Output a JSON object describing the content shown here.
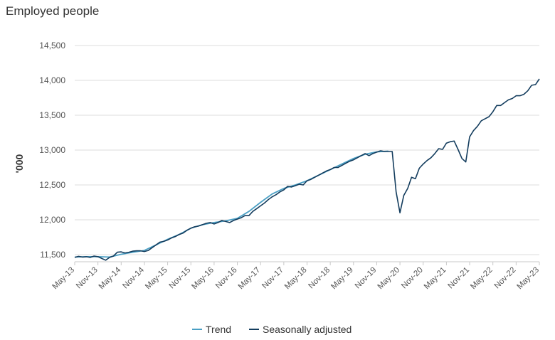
{
  "chart_data": {
    "type": "line",
    "title": "Employed people",
    "xlabel": "",
    "ylabel": "'000",
    "ylim": [
      11400,
      14500
    ],
    "yticks": [
      "11,500",
      "12,000",
      "12,500",
      "13,000",
      "13,500",
      "14,000",
      "14,500"
    ],
    "ytick_values": [
      11500,
      12000,
      12500,
      13000,
      13500,
      14000,
      14500
    ],
    "xticks": [
      "May-13",
      "Nov-13",
      "May-14",
      "Nov-14",
      "May-15",
      "Nov-15",
      "May-16",
      "Nov-16",
      "May-17",
      "Nov-17",
      "May-18",
      "Nov-18",
      "May-19",
      "Nov-19",
      "May-20",
      "Nov-20",
      "May-21",
      "Nov-21",
      "May-22",
      "Nov-22",
      "May-23"
    ],
    "grid": "horizontal",
    "legend_position": "bottom",
    "colors": {
      "trend": "#4a9fc4",
      "seasonally_adjusted": "#143d5e"
    },
    "series": [
      {
        "name": "Trend",
        "key": "trend",
        "points": [
          [
            "May-13",
            11465
          ],
          [
            "Aug-13",
            11470
          ],
          [
            "Nov-13",
            11470
          ],
          [
            "Feb-14",
            11465
          ],
          [
            "May-14",
            11505
          ],
          [
            "Aug-14",
            11535
          ],
          [
            "Nov-14",
            11560
          ],
          [
            "Feb-15",
            11640
          ],
          [
            "May-15",
            11720
          ],
          [
            "Aug-15",
            11790
          ],
          [
            "Nov-15",
            11880
          ],
          [
            "Feb-16",
            11930
          ],
          [
            "May-16",
            11960
          ],
          [
            "Aug-16",
            11985
          ],
          [
            "Nov-16",
            12020
          ],
          [
            "Feb-17",
            12120
          ],
          [
            "May-17",
            12250
          ],
          [
            "Aug-17",
            12370
          ],
          [
            "Nov-17",
            12450
          ],
          [
            "Feb-18",
            12500
          ],
          [
            "May-18",
            12560
          ],
          [
            "Aug-18",
            12640
          ],
          [
            "Nov-18",
            12720
          ],
          [
            "Feb-19",
            12800
          ],
          [
            "May-19",
            12880
          ],
          [
            "Aug-19",
            12940
          ],
          [
            "Nov-19",
            12975
          ],
          [
            "Feb-20",
            12985
          ]
        ]
      },
      {
        "name": "Seasonally adjusted",
        "key": "seasonally_adjusted",
        "points": [
          [
            "May-13",
            11460
          ],
          [
            "Jun-13",
            11475
          ],
          [
            "Jul-13",
            11465
          ],
          [
            "Aug-13",
            11470
          ],
          [
            "Sep-13",
            11460
          ],
          [
            "Oct-13",
            11480
          ],
          [
            "Nov-13",
            11470
          ],
          [
            "Dec-13",
            11445
          ],
          [
            "Jan-14",
            11420
          ],
          [
            "Feb-14",
            11460
          ],
          [
            "Mar-14",
            11480
          ],
          [
            "Apr-14",
            11535
          ],
          [
            "May-14",
            11540
          ],
          [
            "Jun-14",
            11525
          ],
          [
            "Jul-14",
            11535
          ],
          [
            "Aug-14",
            11550
          ],
          [
            "Sep-14",
            11555
          ],
          [
            "Oct-14",
            11555
          ],
          [
            "Nov-14",
            11545
          ],
          [
            "Dec-14",
            11560
          ],
          [
            "Jan-15",
            11600
          ],
          [
            "Feb-15",
            11640
          ],
          [
            "Mar-15",
            11680
          ],
          [
            "Apr-15",
            11690
          ],
          [
            "May-15",
            11710
          ],
          [
            "Jun-15",
            11740
          ],
          [
            "Jul-15",
            11760
          ],
          [
            "Aug-15",
            11790
          ],
          [
            "Sep-15",
            11810
          ],
          [
            "Oct-15",
            11850
          ],
          [
            "Nov-15",
            11880
          ],
          [
            "Dec-15",
            11900
          ],
          [
            "Jan-16",
            11910
          ],
          [
            "Feb-16",
            11930
          ],
          [
            "Mar-16",
            11950
          ],
          [
            "Apr-16",
            11960
          ],
          [
            "May-16",
            11940
          ],
          [
            "Jun-16",
            11960
          ],
          [
            "Jul-16",
            11990
          ],
          [
            "Aug-16",
            11975
          ],
          [
            "Sep-16",
            11960
          ],
          [
            "Oct-16",
            11990
          ],
          [
            "Nov-16",
            12010
          ],
          [
            "Dec-16",
            12030
          ],
          [
            "Jan-17",
            12060
          ],
          [
            "Feb-17",
            12060
          ],
          [
            "Mar-17",
            12120
          ],
          [
            "Apr-17",
            12160
          ],
          [
            "May-17",
            12200
          ],
          [
            "Jun-17",
            12240
          ],
          [
            "Jul-17",
            12290
          ],
          [
            "Aug-17",
            12330
          ],
          [
            "Sep-17",
            12360
          ],
          [
            "Oct-17",
            12400
          ],
          [
            "Nov-17",
            12430
          ],
          [
            "Dec-17",
            12480
          ],
          [
            "Jan-18",
            12470
          ],
          [
            "Feb-18",
            12490
          ],
          [
            "Mar-18",
            12510
          ],
          [
            "Apr-18",
            12500
          ],
          [
            "May-18",
            12560
          ],
          [
            "Jun-18",
            12580
          ],
          [
            "Jul-18",
            12610
          ],
          [
            "Aug-18",
            12640
          ],
          [
            "Sep-18",
            12670
          ],
          [
            "Oct-18",
            12700
          ],
          [
            "Nov-18",
            12720
          ],
          [
            "Dec-18",
            12750
          ],
          [
            "Jan-19",
            12750
          ],
          [
            "Feb-19",
            12780
          ],
          [
            "Mar-19",
            12810
          ],
          [
            "Apr-19",
            12840
          ],
          [
            "May-19",
            12860
          ],
          [
            "Jun-19",
            12890
          ],
          [
            "Jul-19",
            12920
          ],
          [
            "Aug-19",
            12950
          ],
          [
            "Sep-19",
            12920
          ],
          [
            "Oct-19",
            12950
          ],
          [
            "Nov-19",
            12970
          ],
          [
            "Dec-19",
            12990
          ],
          [
            "Jan-20",
            12980
          ],
          [
            "Feb-20",
            12980
          ],
          [
            "Mar-20",
            12980
          ],
          [
            "Apr-20",
            12400
          ],
          [
            "May-20",
            12100
          ],
          [
            "Jun-20",
            12350
          ],
          [
            "Jul-20",
            12450
          ],
          [
            "Aug-20",
            12610
          ],
          [
            "Sep-20",
            12590
          ],
          [
            "Oct-20",
            12740
          ],
          [
            "Nov-20",
            12800
          ],
          [
            "Dec-20",
            12850
          ],
          [
            "Jan-21",
            12890
          ],
          [
            "Feb-21",
            12950
          ],
          [
            "Mar-21",
            13020
          ],
          [
            "Apr-21",
            13010
          ],
          [
            "May-21",
            13100
          ],
          [
            "Jun-21",
            13120
          ],
          [
            "Jul-21",
            13130
          ],
          [
            "Aug-21",
            13010
          ],
          [
            "Sep-21",
            12880
          ],
          [
            "Oct-21",
            12830
          ],
          [
            "Nov-21",
            13190
          ],
          [
            "Dec-21",
            13280
          ],
          [
            "Jan-22",
            13340
          ],
          [
            "Feb-22",
            13420
          ],
          [
            "Mar-22",
            13450
          ],
          [
            "Apr-22",
            13480
          ],
          [
            "May-22",
            13550
          ],
          [
            "Jun-22",
            13640
          ],
          [
            "Jul-22",
            13640
          ],
          [
            "Aug-22",
            13680
          ],
          [
            "Sep-22",
            13720
          ],
          [
            "Oct-22",
            13740
          ],
          [
            "Nov-22",
            13780
          ],
          [
            "Dec-22",
            13780
          ],
          [
            "Jan-23",
            13800
          ],
          [
            "Feb-23",
            13850
          ],
          [
            "Mar-23",
            13930
          ],
          [
            "Apr-23",
            13940
          ],
          [
            "May-23",
            14020
          ]
        ]
      }
    ]
  }
}
